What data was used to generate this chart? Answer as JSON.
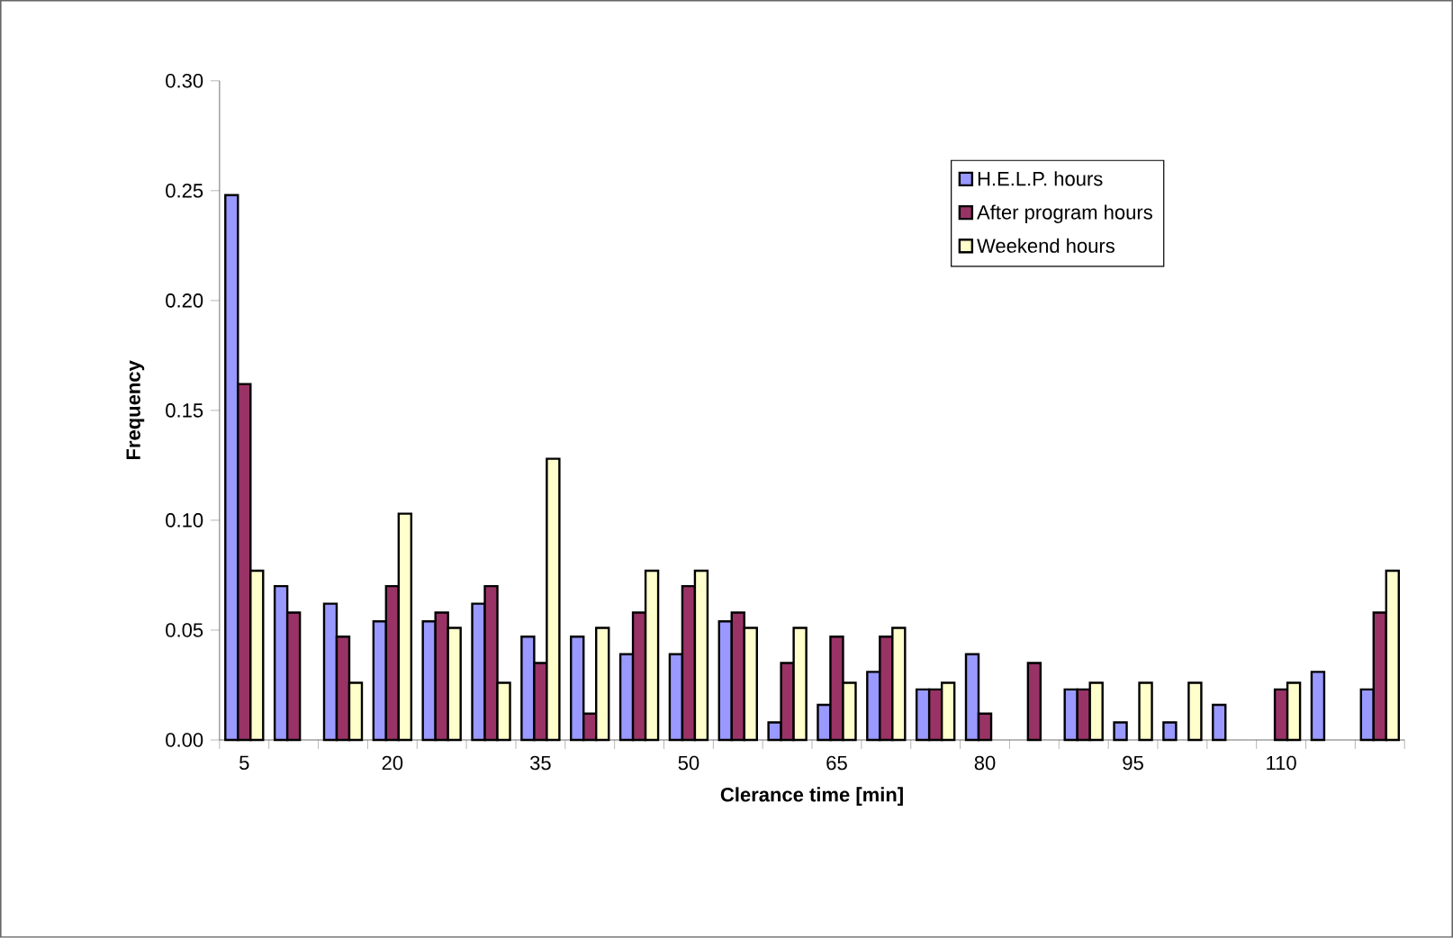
{
  "chart_data": {
    "type": "bar",
    "xlabel": "Clerance time [min]",
    "ylabel": "Frequency",
    "categories": [
      "5",
      null,
      null,
      "20",
      null,
      null,
      "35",
      null,
      null,
      "50",
      null,
      null,
      "65",
      null,
      null,
      "80",
      null,
      null,
      "95",
      null,
      null,
      "110",
      null,
      null
    ],
    "series": [
      {
        "name": "H.E.L.P. hours",
        "color": "#9999ff",
        "values": [
          0.248,
          0.07,
          0.062,
          0.054,
          0.054,
          0.062,
          0.047,
          0.047,
          0.039,
          0.039,
          0.054,
          0.008,
          0.016,
          0.031,
          0.023,
          0.039,
          0,
          0.023,
          0.008,
          0.008,
          0.016,
          0,
          0.031,
          0.023
        ]
      },
      {
        "name": "After program hours",
        "color": "#993366",
        "values": [
          0.162,
          0.058,
          0.047,
          0.07,
          0.058,
          0.07,
          0.035,
          0.012,
          0.058,
          0.07,
          0.058,
          0.035,
          0.047,
          0.047,
          0.023,
          0.012,
          0.035,
          0.023,
          0,
          0,
          0,
          0.023,
          0,
          0.058
        ]
      },
      {
        "name": "Weekend hours",
        "color": "#ffffcc",
        "values": [
          0.077,
          0,
          0.026,
          0.103,
          0.051,
          0.026,
          0.128,
          0.051,
          0.077,
          0.077,
          0.051,
          0.051,
          0.026,
          0.051,
          0.026,
          0,
          0,
          0.026,
          0.026,
          0.026,
          0,
          0.026,
          0,
          0.077
        ]
      }
    ],
    "ylim": [
      0,
      0.3
    ],
    "yticks": [
      {
        "value": 0,
        "label": "0.00"
      },
      {
        "value": 0.05,
        "label": "0.05"
      },
      {
        "value": 0.1,
        "label": "0.10"
      },
      {
        "value": 0.15,
        "label": "0.15"
      },
      {
        "value": 0.2,
        "label": "0.20"
      },
      {
        "value": 0.25,
        "label": "0.25"
      },
      {
        "value": 0.3,
        "label": "0.30"
      }
    ],
    "grid": false,
    "legend": "top right"
  }
}
